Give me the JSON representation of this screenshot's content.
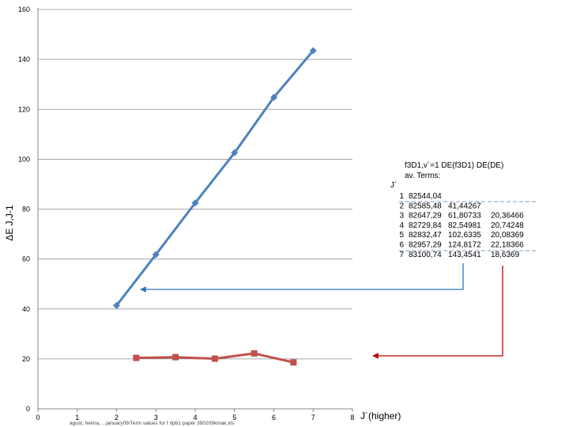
{
  "chart_data": {
    "type": "line",
    "xlabel": "J´(higher)",
    "ylabel": "ΔE J,J-1",
    "xlim": [
      0,
      8
    ],
    "ylim": [
      0,
      160
    ],
    "x_ticks": [
      "0",
      "1",
      "2",
      "3",
      "4",
      "5",
      "6",
      "7",
      "8"
    ],
    "y_ticks": [
      "0",
      "20",
      "40",
      "60",
      "80",
      "100",
      "120",
      "140",
      "160"
    ],
    "grid": "horizontal",
    "series": [
      {
        "x": [
          2,
          3,
          4,
          5,
          6,
          7
        ],
        "values": [
          41.4,
          61.8,
          82.5,
          102.6,
          124.8,
          143.5
        ],
        "color": "#4f81bd",
        "marker": "diamond"
      },
      {
        "x": [
          2.5,
          3.5,
          4.5,
          5.5,
          6.5
        ],
        "values": [
          20.4,
          20.7,
          20.1,
          22.2,
          18.6
        ],
        "color": "#c0504d",
        "marker": "square"
      }
    ],
    "footnote": "agust, heima, ...january09/Term values for f rlpb1 paper 390209kmak.xls"
  },
  "annotation": {
    "header_line1": "f3D1,v´=1  DE(f3D1)      DE(DE)",
    "header_line2": "av. Terms:",
    "j_header": "J´",
    "rows": [
      {
        "j": "1",
        "term": "82544,04",
        "de": "",
        "dde": ""
      },
      {
        "j": "2",
        "term": "82585,48",
        "de": "41,44267",
        "dde": ""
      },
      {
        "j": "3",
        "term": "82647,29",
        "de": "61,80733",
        "dde": "20,36466"
      },
      {
        "j": "4",
        "term": "82729,84",
        "de": "82,54981",
        "dde": "20,74248"
      },
      {
        "j": "5",
        "term": "82832,47",
        "de": "102,6335",
        "dde": "20,08369"
      },
      {
        "j": "6",
        "term": "82957,29",
        "de": "124,8172",
        "dde": "22,18366"
      },
      {
        "j": "7",
        "term": "83100,74",
        "de": "143,4541",
        "dde": "18,6369"
      }
    ],
    "arrow_colors": {
      "blue": "#2e75b6",
      "red": "#c00000"
    }
  }
}
